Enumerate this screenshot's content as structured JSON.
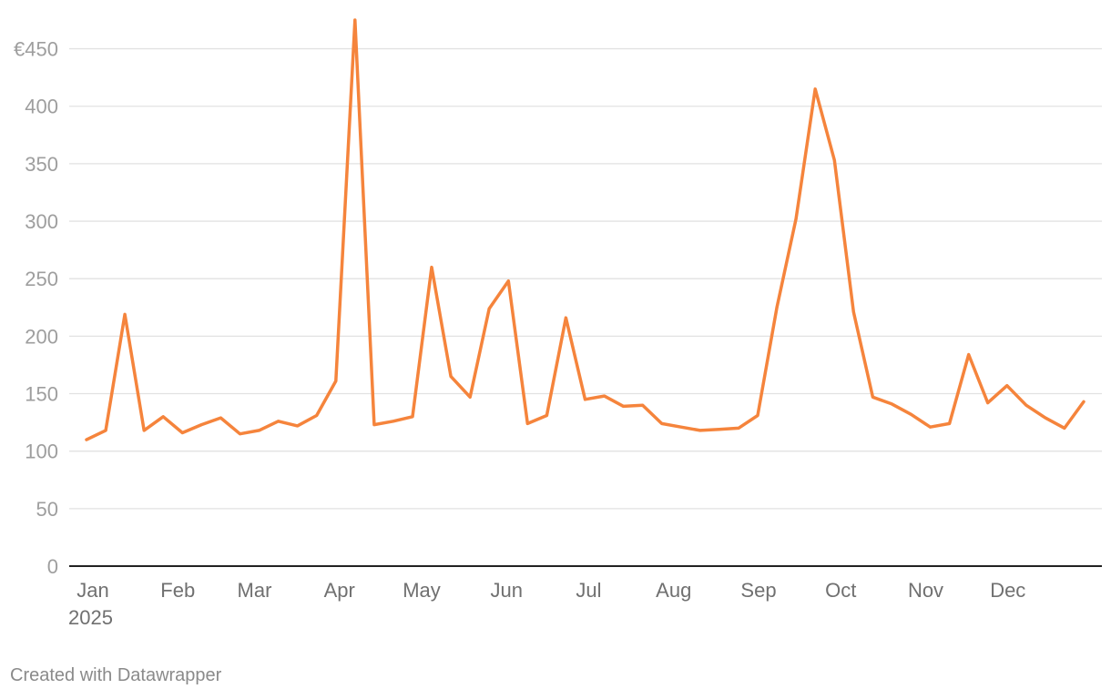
{
  "chart_data": {
    "type": "line",
    "title": "",
    "xlabel": "",
    "ylabel": "",
    "ylim": [
      0,
      475
    ],
    "yticks": [
      0,
      50,
      100,
      150,
      200,
      250,
      300,
      350,
      400,
      450
    ],
    "ytick_labels": [
      "0",
      "50",
      "100",
      "150",
      "200",
      "250",
      "300",
      "350",
      "400",
      "€450"
    ],
    "xlim": [
      "2025-01-01",
      "2025-12-31"
    ],
    "xticks": [
      "2025-01-01",
      "2025-02-01",
      "2025-03-01",
      "2025-04-01",
      "2025-05-01",
      "2025-06-01",
      "2025-07-01",
      "2025-08-01",
      "2025-09-01",
      "2025-10-01",
      "2025-11-01",
      "2025-12-01"
    ],
    "xtick_labels": [
      "Jan",
      "Feb",
      "Mar",
      "Apr",
      "May",
      "Jun",
      "Jul",
      "Aug",
      "Sep",
      "Oct",
      "Nov",
      "Dec"
    ],
    "xtick_year_label": "2025",
    "grid": true,
    "legend": "none",
    "series": [
      {
        "color": "#f5843c",
        "x": [
          "2025-01-01",
          "2025-01-08",
          "2025-01-15",
          "2025-01-22",
          "2025-01-29",
          "2025-02-05",
          "2025-02-12",
          "2025-02-19",
          "2025-02-26",
          "2025-03-05",
          "2025-03-12",
          "2025-03-19",
          "2025-03-26",
          "2025-04-02",
          "2025-04-09",
          "2025-04-16",
          "2025-04-23",
          "2025-04-30",
          "2025-05-07",
          "2025-05-14",
          "2025-05-21",
          "2025-05-28",
          "2025-06-04",
          "2025-06-11",
          "2025-06-18",
          "2025-06-25",
          "2025-07-02",
          "2025-07-09",
          "2025-07-16",
          "2025-07-23",
          "2025-07-30",
          "2025-08-06",
          "2025-08-13",
          "2025-08-20",
          "2025-08-27",
          "2025-09-03",
          "2025-09-10",
          "2025-09-17",
          "2025-09-24",
          "2025-10-01",
          "2025-10-08",
          "2025-10-15",
          "2025-10-22",
          "2025-10-29",
          "2025-11-05",
          "2025-11-12",
          "2025-11-19",
          "2025-11-26",
          "2025-12-03",
          "2025-12-10",
          "2025-12-17",
          "2025-12-24",
          "2025-12-31"
        ],
        "values": [
          110,
          118,
          219,
          118,
          130,
          116,
          123,
          129,
          115,
          118,
          126,
          122,
          131,
          161,
          475,
          123,
          126,
          130,
          260,
          165,
          147,
          224,
          248,
          124,
          131,
          216,
          145,
          148,
          139,
          140,
          124,
          121,
          118,
          119,
          120,
          131,
          225,
          302,
          415,
          353,
          221,
          147,
          141,
          132,
          121,
          124,
          184,
          142,
          157,
          140,
          129,
          120,
          143
        ]
      }
    ]
  },
  "footer": {
    "credit": "Created with Datawrapper"
  }
}
